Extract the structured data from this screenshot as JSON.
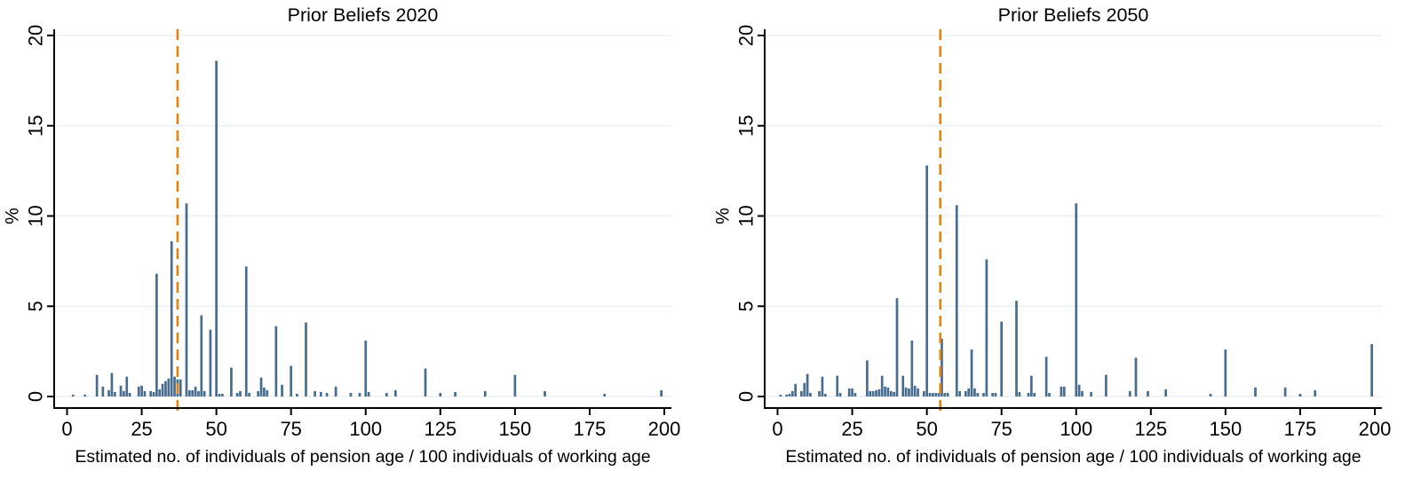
{
  "figure": {
    "kind": "two-panel histogram figure",
    "background": "#ffffff"
  },
  "style": {
    "bar_color": "#486d8e",
    "reference_line_color": "#e8820f",
    "title_color": "#253a66",
    "grid_color": "#e8f0f6",
    "axis_color": "#000000",
    "text_color": "#000000"
  },
  "chart_data": [
    {
      "type": "bar",
      "subtype": "histogram",
      "title": "Prior Beliefs 2020",
      "xlabel": "Estimated no. of individuals of pension age / 100 individuals of working age",
      "ylabel": "%",
      "xticks": [
        0,
        25,
        50,
        75,
        100,
        125,
        150,
        175,
        200
      ],
      "yticks": [
        0,
        5,
        10,
        15,
        20
      ],
      "xlim": [
        -4,
        202
      ],
      "ylim": [
        0,
        20.5
      ],
      "grid": "horizontal",
      "legend": "none",
      "reference_line_x": 37,
      "reference_line_style": "dashed",
      "bins": [
        [
          2,
          0.1
        ],
        [
          6,
          0.1
        ],
        [
          10,
          1.2
        ],
        [
          12,
          0.55
        ],
        [
          14,
          0.35
        ],
        [
          15,
          1.3
        ],
        [
          16,
          0.25
        ],
        [
          18,
          0.6
        ],
        [
          19,
          0.3
        ],
        [
          20,
          1.1
        ],
        [
          21,
          0.2
        ],
        [
          24,
          0.55
        ],
        [
          25,
          0.6
        ],
        [
          26,
          0.3
        ],
        [
          28,
          0.3
        ],
        [
          29,
          0.25
        ],
        [
          30,
          6.8
        ],
        [
          31,
          0.4
        ],
        [
          32,
          0.7
        ],
        [
          33,
          0.85
        ],
        [
          34,
          1.0
        ],
        [
          35,
          8.6
        ],
        [
          36,
          1.1
        ],
        [
          37,
          0.95
        ],
        [
          38,
          0.95
        ],
        [
          40,
          10.7
        ],
        [
          41,
          0.35
        ],
        [
          42,
          0.35
        ],
        [
          43,
          0.55
        ],
        [
          44,
          0.3
        ],
        [
          45,
          4.5
        ],
        [
          46,
          0.3
        ],
        [
          48,
          3.7
        ],
        [
          50,
          18.6
        ],
        [
          51,
          0.15
        ],
        [
          52,
          0.15
        ],
        [
          55,
          1.6
        ],
        [
          57,
          0.2
        ],
        [
          58,
          0.3
        ],
        [
          60,
          7.2
        ],
        [
          61,
          0.2
        ],
        [
          64,
          0.3
        ],
        [
          65,
          1.05
        ],
        [
          66,
          0.5
        ],
        [
          67,
          0.35
        ],
        [
          70,
          3.9
        ],
        [
          72,
          0.65
        ],
        [
          75,
          1.7
        ],
        [
          77,
          0.15
        ],
        [
          80,
          4.1
        ],
        [
          83,
          0.3
        ],
        [
          85,
          0.25
        ],
        [
          87,
          0.2
        ],
        [
          90,
          0.55
        ],
        [
          95,
          0.2
        ],
        [
          98,
          0.2
        ],
        [
          100,
          3.1
        ],
        [
          101,
          0.25
        ],
        [
          107,
          0.2
        ],
        [
          110,
          0.35
        ],
        [
          120,
          1.55
        ],
        [
          125,
          0.2
        ],
        [
          130,
          0.25
        ],
        [
          140,
          0.3
        ],
        [
          150,
          1.2
        ],
        [
          160,
          0.3
        ],
        [
          180,
          0.15
        ],
        [
          199,
          0.35
        ]
      ]
    },
    {
      "type": "bar",
      "subtype": "histogram",
      "title": "Prior Beliefs 2050",
      "xlabel": "Estimated no. of individuals of pension age / 100 individuals of working age",
      "ylabel": "%",
      "xticks": [
        0,
        25,
        50,
        75,
        100,
        125,
        150,
        175,
        200
      ],
      "yticks": [
        0,
        5,
        10,
        15,
        20
      ],
      "xlim": [
        -4,
        202
      ],
      "ylim": [
        0,
        20.5
      ],
      "grid": "horizontal",
      "legend": "none",
      "reference_line_x": 54.5,
      "reference_line_style": "dashed",
      "bins": [
        [
          1,
          0.1
        ],
        [
          3,
          0.1
        ],
        [
          4,
          0.15
        ],
        [
          5,
          0.3
        ],
        [
          6,
          0.7
        ],
        [
          8,
          0.3
        ],
        [
          9,
          0.75
        ],
        [
          10,
          1.25
        ],
        [
          11,
          0.2
        ],
        [
          14,
          0.3
        ],
        [
          15,
          1.1
        ],
        [
          16,
          0.15
        ],
        [
          20,
          1.15
        ],
        [
          21,
          0.2
        ],
        [
          24,
          0.45
        ],
        [
          25,
          0.45
        ],
        [
          26,
          0.2
        ],
        [
          30,
          2.0
        ],
        [
          31,
          0.3
        ],
        [
          32,
          0.3
        ],
        [
          33,
          0.35
        ],
        [
          34,
          0.4
        ],
        [
          35,
          1.15
        ],
        [
          36,
          0.55
        ],
        [
          37,
          0.5
        ],
        [
          38,
          0.3
        ],
        [
          39,
          0.25
        ],
        [
          40,
          5.45
        ],
        [
          42,
          1.15
        ],
        [
          43,
          0.5
        ],
        [
          44,
          0.45
        ],
        [
          45,
          3.1
        ],
        [
          46,
          0.6
        ],
        [
          47,
          0.45
        ],
        [
          49,
          0.3
        ],
        [
          50,
          12.8
        ],
        [
          51,
          0.2
        ],
        [
          52,
          0.2
        ],
        [
          53,
          0.2
        ],
        [
          54,
          0.2
        ],
        [
          55,
          3.2
        ],
        [
          56,
          0.2
        ],
        [
          57,
          0.2
        ],
        [
          60,
          10.6
        ],
        [
          61,
          0.3
        ],
        [
          63,
          0.3
        ],
        [
          64,
          0.45
        ],
        [
          65,
          2.6
        ],
        [
          66,
          0.45
        ],
        [
          67,
          0.2
        ],
        [
          69,
          0.2
        ],
        [
          70,
          7.6
        ],
        [
          72,
          0.2
        ],
        [
          73,
          0.2
        ],
        [
          75,
          4.15
        ],
        [
          80,
          5.3
        ],
        [
          81,
          0.25
        ],
        [
          84,
          0.2
        ],
        [
          85,
          1.15
        ],
        [
          86,
          0.2
        ],
        [
          90,
          2.2
        ],
        [
          91,
          0.2
        ],
        [
          95,
          0.55
        ],
        [
          96,
          0.55
        ],
        [
          100,
          10.7
        ],
        [
          101,
          0.65
        ],
        [
          102,
          0.3
        ],
        [
          105,
          0.25
        ],
        [
          110,
          1.2
        ],
        [
          118,
          0.3
        ],
        [
          120,
          2.15
        ],
        [
          124,
          0.3
        ],
        [
          130,
          0.4
        ],
        [
          145,
          0.15
        ],
        [
          150,
          2.6
        ],
        [
          160,
          0.5
        ],
        [
          170,
          0.5
        ],
        [
          175,
          0.15
        ],
        [
          180,
          0.35
        ],
        [
          199,
          2.9
        ]
      ]
    }
  ]
}
